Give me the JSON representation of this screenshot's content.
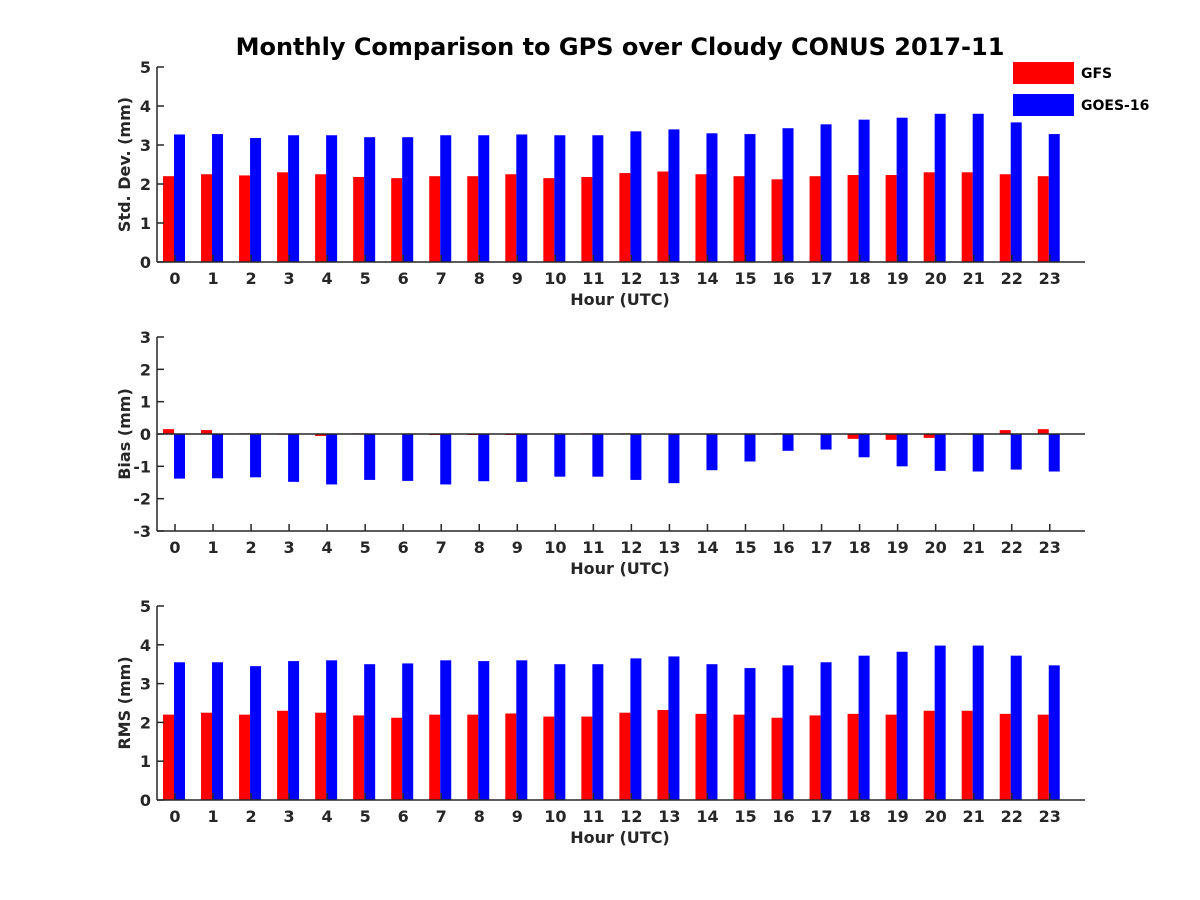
{
  "chart_data": {
    "type": "bar",
    "title": "Monthly Comparison to GPS over Cloudy CONUS 2017-11",
    "colors": {
      "GFS": "#ff0000",
      "GOES-16": "#0000ff"
    },
    "legend": {
      "placement": "top-right",
      "entries": [
        "GFS",
        "GOES-16"
      ]
    },
    "categories": [
      "0",
      "1",
      "2",
      "3",
      "4",
      "5",
      "6",
      "7",
      "8",
      "9",
      "10",
      "11",
      "12",
      "13",
      "14",
      "15",
      "16",
      "17",
      "18",
      "19",
      "20",
      "21",
      "22",
      "23"
    ],
    "panels": [
      {
        "ylabel": "Std. Dev. (mm)",
        "xlabel": "Hour (UTC)",
        "ylim": [
          0,
          5
        ],
        "yticks": [
          "0",
          "1",
          "2",
          "3",
          "4",
          "5"
        ],
        "series": [
          {
            "name": "GFS",
            "values": [
              2.2,
              2.25,
              2.22,
              2.3,
              2.25,
              2.18,
              2.15,
              2.2,
              2.2,
              2.25,
              2.15,
              2.18,
              2.28,
              2.32,
              2.25,
              2.2,
              2.12,
              2.2,
              2.23,
              2.23,
              2.3,
              2.3,
              2.25,
              2.2
            ]
          },
          {
            "name": "GOES-16",
            "values": [
              3.27,
              3.28,
              3.18,
              3.25,
              3.25,
              3.2,
              3.2,
              3.25,
              3.25,
              3.27,
              3.25,
              3.25,
              3.35,
              3.4,
              3.3,
              3.28,
              3.43,
              3.53,
              3.65,
              3.7,
              3.8,
              3.8,
              3.58,
              3.28
            ]
          }
        ]
      },
      {
        "ylabel": "Bias (mm)",
        "xlabel": "Hour (UTC)",
        "ylim": [
          -3,
          3
        ],
        "yticks": [
          "-3",
          "-2",
          "-1",
          "0",
          "1",
          "2",
          "3"
        ],
        "series": [
          {
            "name": "GFS",
            "values": [
              0.15,
              0.12,
              0.02,
              -0.02,
              -0.06,
              0.02,
              0.0,
              -0.03,
              -0.03,
              -0.03,
              0.0,
              0.02,
              0.02,
              0.0,
              0.0,
              0.0,
              0.02,
              0.0,
              -0.15,
              -0.18,
              -0.12,
              0.02,
              0.12,
              0.15
            ]
          },
          {
            "name": "GOES-16",
            "values": [
              -1.38,
              -1.37,
              -1.34,
              -1.48,
              -1.56,
              -1.42,
              -1.45,
              -1.56,
              -1.46,
              -1.48,
              -1.32,
              -1.32,
              -1.42,
              -1.52,
              -1.12,
              -0.85,
              -0.52,
              -0.48,
              -0.72,
              -1.0,
              -1.14,
              -1.16,
              -1.1,
              -1.16
            ]
          }
        ]
      },
      {
        "ylabel": "RMS (mm)",
        "xlabel": "Hour (UTC)",
        "ylim": [
          0,
          5
        ],
        "yticks": [
          "0",
          "1",
          "2",
          "3",
          "4",
          "5"
        ],
        "series": [
          {
            "name": "GFS",
            "values": [
              2.2,
              2.25,
              2.2,
              2.3,
              2.25,
              2.18,
              2.12,
              2.2,
              2.2,
              2.23,
              2.15,
              2.15,
              2.25,
              2.32,
              2.22,
              2.2,
              2.12,
              2.18,
              2.22,
              2.2,
              2.3,
              2.3,
              2.22,
              2.2
            ]
          },
          {
            "name": "GOES-16",
            "values": [
              3.55,
              3.55,
              3.45,
              3.58,
              3.6,
              3.5,
              3.52,
              3.6,
              3.58,
              3.6,
              3.5,
              3.5,
              3.65,
              3.7,
              3.5,
              3.4,
              3.47,
              3.55,
              3.72,
              3.82,
              3.98,
              3.98,
              3.72,
              3.47
            ]
          }
        ]
      }
    ]
  }
}
